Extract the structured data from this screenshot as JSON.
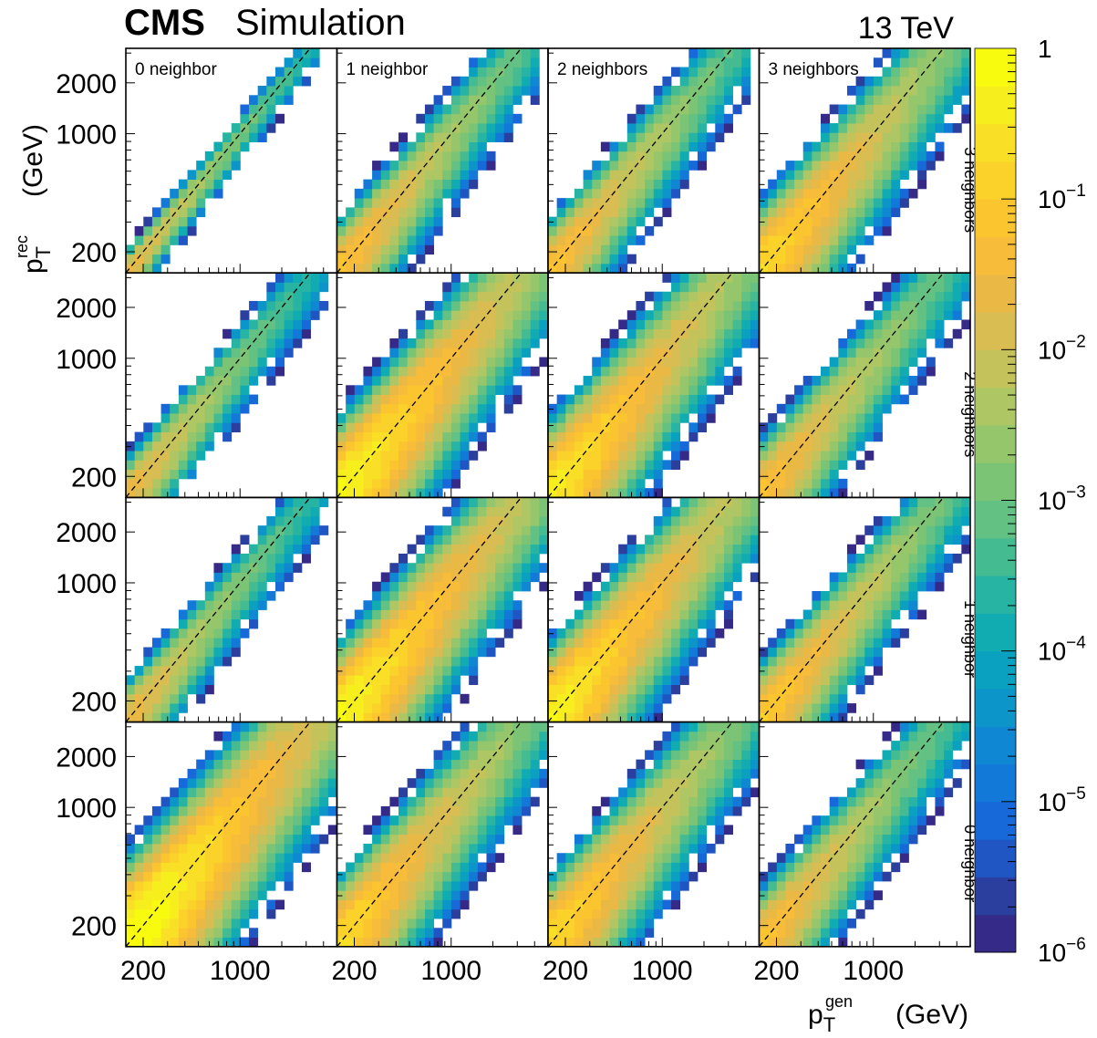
{
  "header": {
    "experiment": "CMS",
    "subtitle": "Simulation",
    "energy": "13 TeV"
  },
  "colormap": [
    "#352a87",
    "#2b3f9e",
    "#1f56c4",
    "#1768d8",
    "#1279d9",
    "#0f87d2",
    "#0c95c9",
    "#0aa1c0",
    "#10acb2",
    "#27b4a2",
    "#45bb92",
    "#62c183",
    "#7cc475",
    "#95c66b",
    "#aec663",
    "#c4c35b",
    "#d9bd52",
    "#eab945",
    "#f7bc3a",
    "#fbc52f",
    "#fbd22a",
    "#f9e026",
    "#f7ef1d",
    "#f9fb0e"
  ],
  "chart_data": {
    "type": "heatmap",
    "description_grid": "4x4 grid of 2D histograms, rows by neighbor count (top to bottom: 3,2,1,0), columns by neighbor count (left to right: 0,1,2,3)",
    "xlabel": {
      "main": "p",
      "sup": "gen",
      "sub": "T",
      "unit": "(GeV)"
    },
    "ylabel": {
      "main": "p",
      "sup": "rec",
      "sub": "T",
      "unit": "(GeV)"
    },
    "x_scale": "log",
    "y_scale": "log",
    "xlim": [
      150,
      5000
    ],
    "ylim": [
      150,
      3200
    ],
    "x_ticks": [
      200,
      1000
    ],
    "x_tick_labels": [
      "200",
      "1000"
    ],
    "y_ticks": [
      200,
      1000,
      2000
    ],
    "y_tick_labels": [
      "200",
      "1000",
      "2000"
    ],
    "z_scale": "log",
    "zlim": [
      1e-06,
      1
    ],
    "colorbar_labels": [
      {
        "value": 1,
        "base": "1",
        "exp": ""
      },
      {
        "value": 0.1,
        "base": "10",
        "exp": "−1"
      },
      {
        "value": 0.01,
        "base": "10",
        "exp": "−2"
      },
      {
        "value": 0.001,
        "base": "10",
        "exp": "−3"
      },
      {
        "value": 0.0001,
        "base": "10",
        "exp": "−4"
      },
      {
        "value": 1e-05,
        "base": "10",
        "exp": "−5"
      },
      {
        "value": 1e-06,
        "base": "10",
        "exp": "−6"
      }
    ],
    "column_labels": [
      "0 neighbor",
      "1 neighbor",
      "2 neighbors",
      "3 neighbors"
    ],
    "row_labels": [
      "3 neighbors",
      "2 neighbors",
      "1 neighbor",
      "0 neighbor"
    ],
    "diagonal": "dashed line y = x",
    "panels": [
      {
        "row": 0,
        "col": 0,
        "width": 0.05,
        "peak": 0.018,
        "xmin": 150,
        "xmax": 4000
      },
      {
        "row": 0,
        "col": 1,
        "width": 0.11,
        "peak": 0.05,
        "xmin": 150,
        "xmax": 4500
      },
      {
        "row": 0,
        "col": 2,
        "width": 0.11,
        "peak": 0.05,
        "xmin": 150,
        "xmax": 4500
      },
      {
        "row": 0,
        "col": 3,
        "width": 0.14,
        "peak": 0.15,
        "xmin": 150,
        "xmax": 5000
      },
      {
        "row": 1,
        "col": 0,
        "width": 0.09,
        "peak": 0.02,
        "xmin": 150,
        "xmax": 4500
      },
      {
        "row": 1,
        "col": 1,
        "width": 0.15,
        "peak": 0.5,
        "xmin": 150,
        "xmax": 5000
      },
      {
        "row": 1,
        "col": 2,
        "width": 0.15,
        "peak": 0.3,
        "xmin": 150,
        "xmax": 5000
      },
      {
        "row": 1,
        "col": 3,
        "width": 0.12,
        "peak": 0.05,
        "xmin": 150,
        "xmax": 5000
      },
      {
        "row": 2,
        "col": 0,
        "width": 0.09,
        "peak": 0.02,
        "xmin": 150,
        "xmax": 4500
      },
      {
        "row": 2,
        "col": 1,
        "width": 0.15,
        "peak": 0.5,
        "xmin": 150,
        "xmax": 5000
      },
      {
        "row": 2,
        "col": 2,
        "width": 0.15,
        "peak": 0.4,
        "xmin": 150,
        "xmax": 5000
      },
      {
        "row": 2,
        "col": 3,
        "width": 0.12,
        "peak": 0.08,
        "xmin": 150,
        "xmax": 5000
      },
      {
        "row": 3,
        "col": 0,
        "width": 0.17,
        "peak": 1.0,
        "xmin": 150,
        "xmax": 5000
      },
      {
        "row": 3,
        "col": 1,
        "width": 0.14,
        "peak": 0.15,
        "xmin": 150,
        "xmax": 5000
      },
      {
        "row": 3,
        "col": 2,
        "width": 0.14,
        "peak": 0.15,
        "xmin": 150,
        "xmax": 5000
      },
      {
        "row": 3,
        "col": 3,
        "width": 0.12,
        "peak": 0.05,
        "xmin": 150,
        "xmax": 5000
      }
    ]
  }
}
